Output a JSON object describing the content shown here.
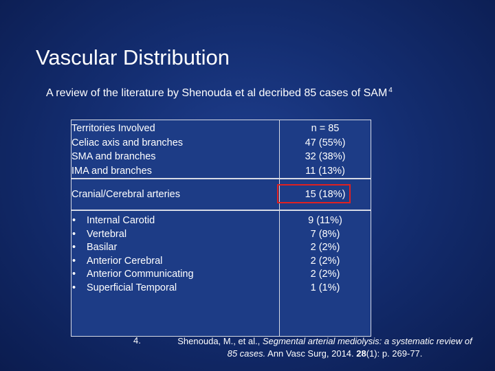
{
  "slide": {
    "title": "Vascular Distribution",
    "intro": "A review of the literature by Shenouda et al decribed 85 cases of SAM",
    "intro_superscript": "4"
  },
  "table": {
    "group1_labels": [
      "Territories Involved",
      "Celiac axis and branches",
      "SMA and branches",
      "IMA and branches"
    ],
    "group1_values": [
      "n = 85",
      "47 (55%)",
      "32 (38%)",
      "11 (13%)"
    ],
    "group2_label": "Cranial/Cerebral arteries",
    "group2_value": "15 (18%)",
    "group3_bullet": "•",
    "group3_labels": [
      "Internal Carotid",
      "Vertebral",
      "Basilar",
      "Anterior Cerebral",
      "Anterior Communicating",
      "Superficial Temporal"
    ],
    "group3_values": [
      "9 (11%)",
      "7 (8%)",
      "2 (2%)",
      "2 (2%)",
      "2 (2%)",
      "1 (1%)"
    ],
    "highlight_color": "#e02020"
  },
  "reference": {
    "number": "4.",
    "authors": "Shenouda, M., et al., ",
    "title": "Segmental arterial mediolysis: a systematic review of 85 cases.",
    "journal": " Ann Vasc Surg, 2014. ",
    "volume": "28",
    "pages": "(1): p. 269-77."
  }
}
